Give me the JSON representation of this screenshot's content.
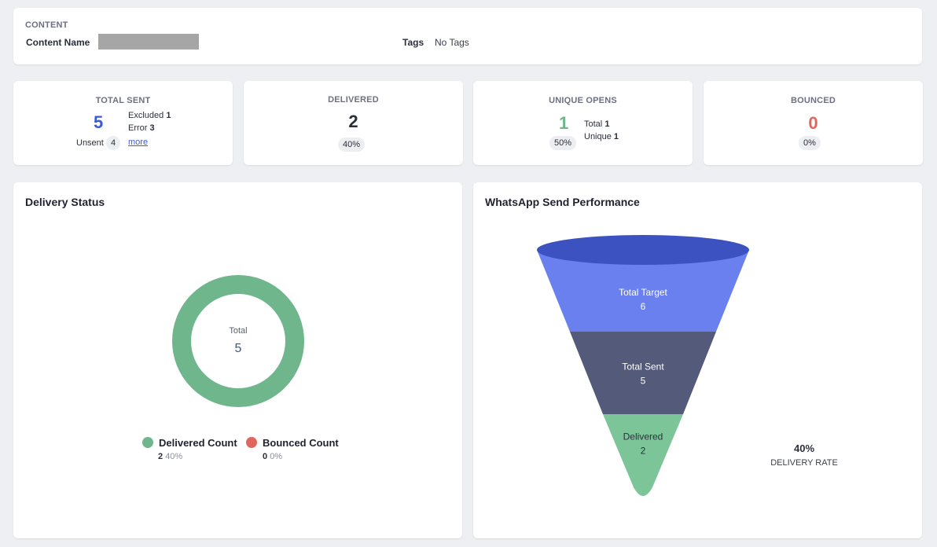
{
  "content": {
    "section_label": "CONTENT",
    "name_label": "Content Name",
    "tags_label": "Tags",
    "tags_value": "No Tags"
  },
  "stats": {
    "total_sent": {
      "title": "TOTAL SENT",
      "value": "5",
      "excluded_label": "Excluded",
      "excluded_value": "1",
      "error_label": "Error",
      "error_value": "3",
      "unsent_label": "Unsent",
      "unsent_value": "4",
      "more_label": "more",
      "color": "#3a5bd9"
    },
    "delivered": {
      "title": "DELIVERED",
      "value": "2",
      "percent": "40%",
      "color": "#2b2f3a"
    },
    "unique_opens": {
      "title": "UNIQUE OPENS",
      "value": "1",
      "percent": "50%",
      "total_label": "Total",
      "total_value": "1",
      "unique_label": "Unique",
      "unique_value": "1",
      "color": "#6fb68c"
    },
    "bounced": {
      "title": "BOUNCED",
      "value": "0",
      "percent": "0%",
      "color": "#e0675e"
    }
  },
  "delivery_status": {
    "title": "Delivery Status",
    "center_label": "Total",
    "center_value": "5",
    "legend": [
      {
        "label": "Delivered Count",
        "count": "2",
        "percent": "40%",
        "color": "#6fb68c"
      },
      {
        "label": "Bounced Count",
        "count": "0",
        "percent": "0%",
        "color": "#e0675e"
      }
    ]
  },
  "chart_data": {
    "type": "funnel",
    "title": "WhatsApp Send Performance",
    "stages": [
      {
        "name": "Total Target",
        "value": 6,
        "color": "#6a80ef"
      },
      {
        "name": "Total Sent",
        "value": 5,
        "color": "#545a79"
      },
      {
        "name": "Delivered",
        "value": 2,
        "color": "#7bc598"
      }
    ],
    "top_color": "#3b52c0",
    "delivery_rate_value": "40%",
    "delivery_rate_label": "DELIVERY RATE"
  }
}
